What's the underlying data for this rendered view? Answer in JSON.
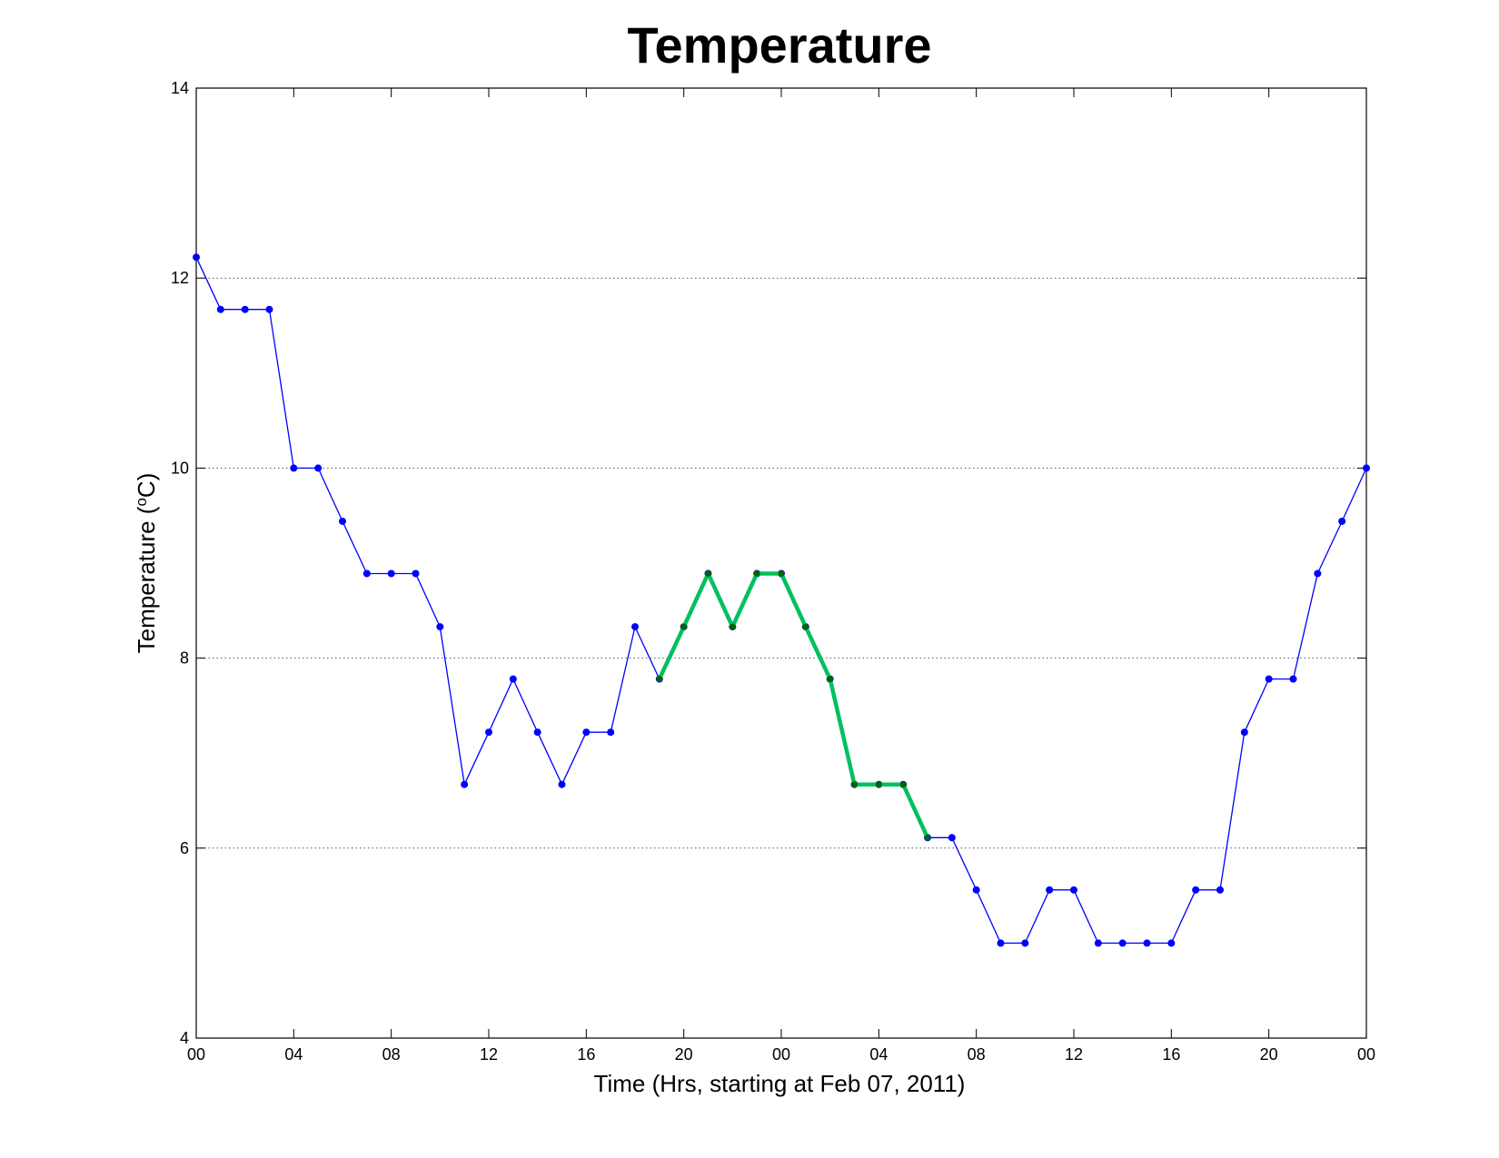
{
  "chart_data": {
    "type": "line",
    "title": "Temperature",
    "xlabel": "Time (Hrs, starting at Feb 07, 2011)",
    "ylabel_prefix": "Temperature (",
    "ylabel_degree": "o",
    "ylabel_suffix": "C)",
    "xlim": [
      0,
      48
    ],
    "ylim": [
      4,
      14
    ],
    "x_ticks": [
      0,
      4,
      8,
      12,
      16,
      20,
      24,
      28,
      32,
      36,
      40,
      44,
      48
    ],
    "x_tick_labels": [
      "00",
      "04",
      "08",
      "12",
      "16",
      "20",
      "00",
      "04",
      "08",
      "12",
      "16",
      "20",
      "00"
    ],
    "y_ticks": [
      4,
      6,
      8,
      10,
      12,
      14
    ],
    "y_tick_labels": [
      "4",
      "6",
      "8",
      "10",
      "12",
      "14"
    ],
    "y_grid": true,
    "x_grid": false,
    "series": [
      {
        "color": "#0000ff",
        "x": [
          0,
          1,
          2,
          3,
          4,
          5,
          6,
          7,
          8,
          9,
          10,
          11,
          12,
          13,
          14,
          15,
          16,
          17,
          18,
          19,
          20,
          21,
          22,
          23,
          24,
          25,
          26,
          27,
          28,
          29,
          30,
          31,
          32,
          33,
          34,
          35,
          36,
          37,
          38,
          39,
          40,
          41,
          42,
          43,
          44,
          45,
          46,
          47,
          48
        ],
        "y": [
          12.22,
          11.67,
          11.67,
          11.67,
          10,
          10,
          9.44,
          8.89,
          8.89,
          8.89,
          8.33,
          6.67,
          7.22,
          7.78,
          7.22,
          6.67,
          7.22,
          7.22,
          8.33,
          7.78,
          8.33,
          8.89,
          8.33,
          8.89,
          8.89,
          8.33,
          7.78,
          6.67,
          6.67,
          6.67,
          6.11,
          6.11,
          5.56,
          5,
          5,
          5.56,
          5.56,
          5,
          5,
          5,
          5,
          5.56,
          5.56,
          7.22,
          7.78,
          7.78,
          8.89,
          9.44,
          10
        ]
      },
      {
        "color": "#00c060",
        "marker_color": "#006600",
        "x": [
          19,
          20,
          21,
          22,
          23,
          24,
          25,
          26,
          27,
          28,
          29,
          30
        ],
        "y": [
          7.78,
          8.33,
          8.89,
          8.33,
          8.89,
          8.89,
          8.33,
          7.78,
          6.67,
          6.67,
          6.67,
          6.11
        ]
      }
    ]
  }
}
